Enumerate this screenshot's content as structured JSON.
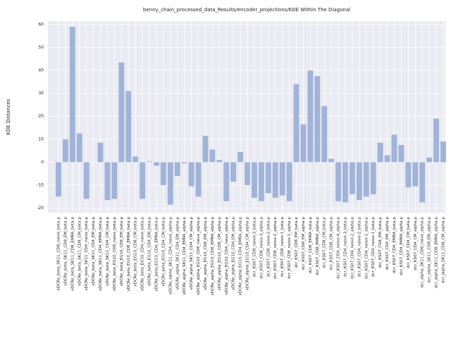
{
  "chart_data": {
    "type": "bar",
    "title": "benny_chain_processed_data_Results/encoder_projections/KDE Within The Diagonal",
    "ylabel": "KDE Distances",
    "categories": [
      "vDCRe_beta_SK11_CD8_naive_beta.p",
      "vDCRe_beta_SK11_CD8_EM_beta.p",
      "vDCRe_beta_SK11_CD8_EMRA_beta.p",
      "vDCRe_beta_SK11_CD8_CM_beta.p",
      "vDCRe_beta_SK11_CD4_naive_beta.p",
      "vDCRe_beta_SK11_CD4_EM_beta.p",
      "vDCRe_beta_SK11_CD4_EMRA_beta.p",
      "vDCRe_beta_SK11_CD4_CM_beta.p",
      "vDCRe_beta_EG10_CD8_naive_beta.p",
      "vDCRe_beta_EG10_CD8_EM_beta.p",
      "vDCRe_beta_EG10_CD8_EMRA_beta.p",
      "vDCRe_beta_EG10_CD8_CM_beta.p",
      "vDCRe_beta_EG10_CD4_naive_beta.p",
      "vDCRe_beta_EG10_CD4_EM_beta.p",
      "vDCRe_beta_EG10_CD4_EMRA_beta.p",
      "vDCRe_beta_EG10_CD4_CM_beta.p",
      "vDCRe_alpha_SK11_CD4_naive_alpha.p",
      "vDCRe_alpha_SK11_CD4_EM_alpha.p",
      "vDCRe_alpha_SK11_CD4_EMRA_alpha.p",
      "vDCRe_alpha_SK11_CD4_CM_alpha.p",
      "vDCRe_alpha_EG10_CD8_naive_alpha.p",
      "vDCRe_alpha_EG10_CD8_EM_alpha.p",
      "vDCRe_alpha_EG10_CD8_EMRA_alpha.p",
      "vDCRe_alpha_EG10_CD8_CM_alpha.p",
      "vDCRe_alpha_EG10_CD4_naive_alpha.p",
      "vDCRe_alpha_EG10_CD4_EM_alpha.p",
      "vDCRe_alpha_EG10_CD4_EMRA_alpha.p",
      "vDCRe_alpha_EG10_CD4_CM_alpha.p",
      "dcr_KS07_CD8_naive-3_beta.p",
      "dcr_KS07_CD8_naive-3_alpha.p",
      "dcr_KS07_CD8_naive-2_beta.p",
      "dcr_KS07_CD8_naive-2_alpha.p",
      "dcr_KS07_CD8_naive-1_beta.p",
      "dcr_KS07_CD8_naive-1_alpha.p",
      "dcr_KS07_CD8_EM_beta.p",
      "dcr_KS07_CD8_EM_alpha.p",
      "dcr_KS07_CD8_EMRA_beta.p",
      "dcr_KS07_CD8_EMRA_alpha.p",
      "dcr_KS07_CD8_CM_beta.p",
      "dcr_KS07_CD8_CM_alpha.p",
      "dcr_KS07_CD4_naive-4_alpha.p",
      "dcr_KS07_CD4_naive-3_beta.p",
      "dcr_KS07_CD4_naive-2_alpha.p",
      "dcr_KS07_CD4_naive-2_beta.p",
      "dcr_KS07_CD4_naive-1_alpha.p",
      "dcr_KS07_CD4_naive-1_beta.p",
      "dcr_KS07_CD4_EM_beta.p",
      "dcr_KS07_CD4_EM_alpha.p",
      "dcr_KS07_CD4_EMRA_beta.p",
      "dcr_KS07_CD4_EMRA_alpha.p",
      "dcr_KS07_CD4_CM_beta.p",
      "dcr_KS07_CD4_CM_alpha.p",
      "dcr_alpha_SK11_CD8_naive_alpha.p",
      "dcr_alpha_SK11_CD8_EM_alpha.p",
      "dcr_alpha_SK11_CD8_EMRA_alpha.p",
      "dcr_alpha_SK11_CD8_CM_alpha.p"
    ],
    "values": [
      -15,
      10,
      59,
      12.5,
      -16,
      0,
      8.5,
      -16.5,
      -16,
      43.5,
      31,
      2.5,
      -16,
      0.3,
      -1.5,
      -10,
      -18.5,
      -6,
      -0.5,
      -10.5,
      -15,
      11.5,
      5.5,
      1,
      -17,
      -8.5,
      4.5,
      -10,
      -15.5,
      -17,
      -13.5,
      -15.5,
      -14.5,
      -17,
      34,
      16.5,
      40,
      37.5,
      24.5,
      1.5,
      -17,
      -17.5,
      -14,
      -16.5,
      -15,
      -14,
      8.5,
      3,
      12,
      7.5,
      -11,
      -10.5,
      -17.5,
      2,
      19,
      9
    ],
    "color": "#a1b3d8",
    "ylim": [
      -22,
      61.5
    ],
    "yticks": [
      -20,
      -10,
      0,
      10,
      20,
      30,
      40,
      50,
      60
    ],
    "grid": true
  }
}
